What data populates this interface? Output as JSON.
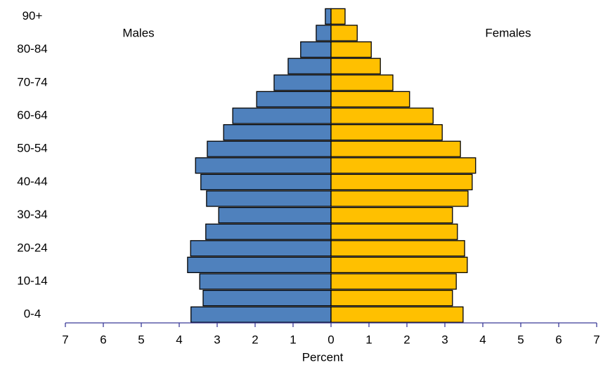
{
  "chart_data": {
    "type": "population-pyramid",
    "x_label": "Percent",
    "categories": [
      "0-4",
      null,
      "10-14",
      null,
      "20-24",
      null,
      "30-34",
      null,
      "40-44",
      null,
      "50-54",
      null,
      "60-64",
      null,
      "70-74",
      null,
      "80-84",
      null,
      "90+"
    ],
    "series": [
      {
        "name": "Males",
        "color": "#4f81bd",
        "side": "left",
        "values": [
          3.69,
          3.37,
          3.46,
          3.78,
          3.7,
          3.3,
          2.96,
          3.28,
          3.43,
          3.57,
          3.26,
          2.83,
          2.59,
          1.96,
          1.5,
          1.13,
          0.8,
          0.39,
          0.15
        ]
      },
      {
        "name": "Females",
        "color": "#ffc000",
        "side": "right",
        "values": [
          3.48,
          3.2,
          3.3,
          3.59,
          3.52,
          3.33,
          3.2,
          3.61,
          3.72,
          3.81,
          3.41,
          2.93,
          2.69,
          2.07,
          1.63,
          1.3,
          1.06,
          0.69,
          0.37
        ]
      }
    ],
    "xlim": [
      -7,
      7
    ],
    "xticks": [
      {
        "value": -7,
        "label": "7"
      },
      {
        "value": -6,
        "label": "6"
      },
      {
        "value": -5,
        "label": "5"
      },
      {
        "value": -4,
        "label": "4"
      },
      {
        "value": -3,
        "label": "3"
      },
      {
        "value": -2,
        "label": "2"
      },
      {
        "value": -1,
        "label": "1"
      },
      0,
      1,
      2,
      3,
      4,
      5,
      6,
      7
    ]
  }
}
